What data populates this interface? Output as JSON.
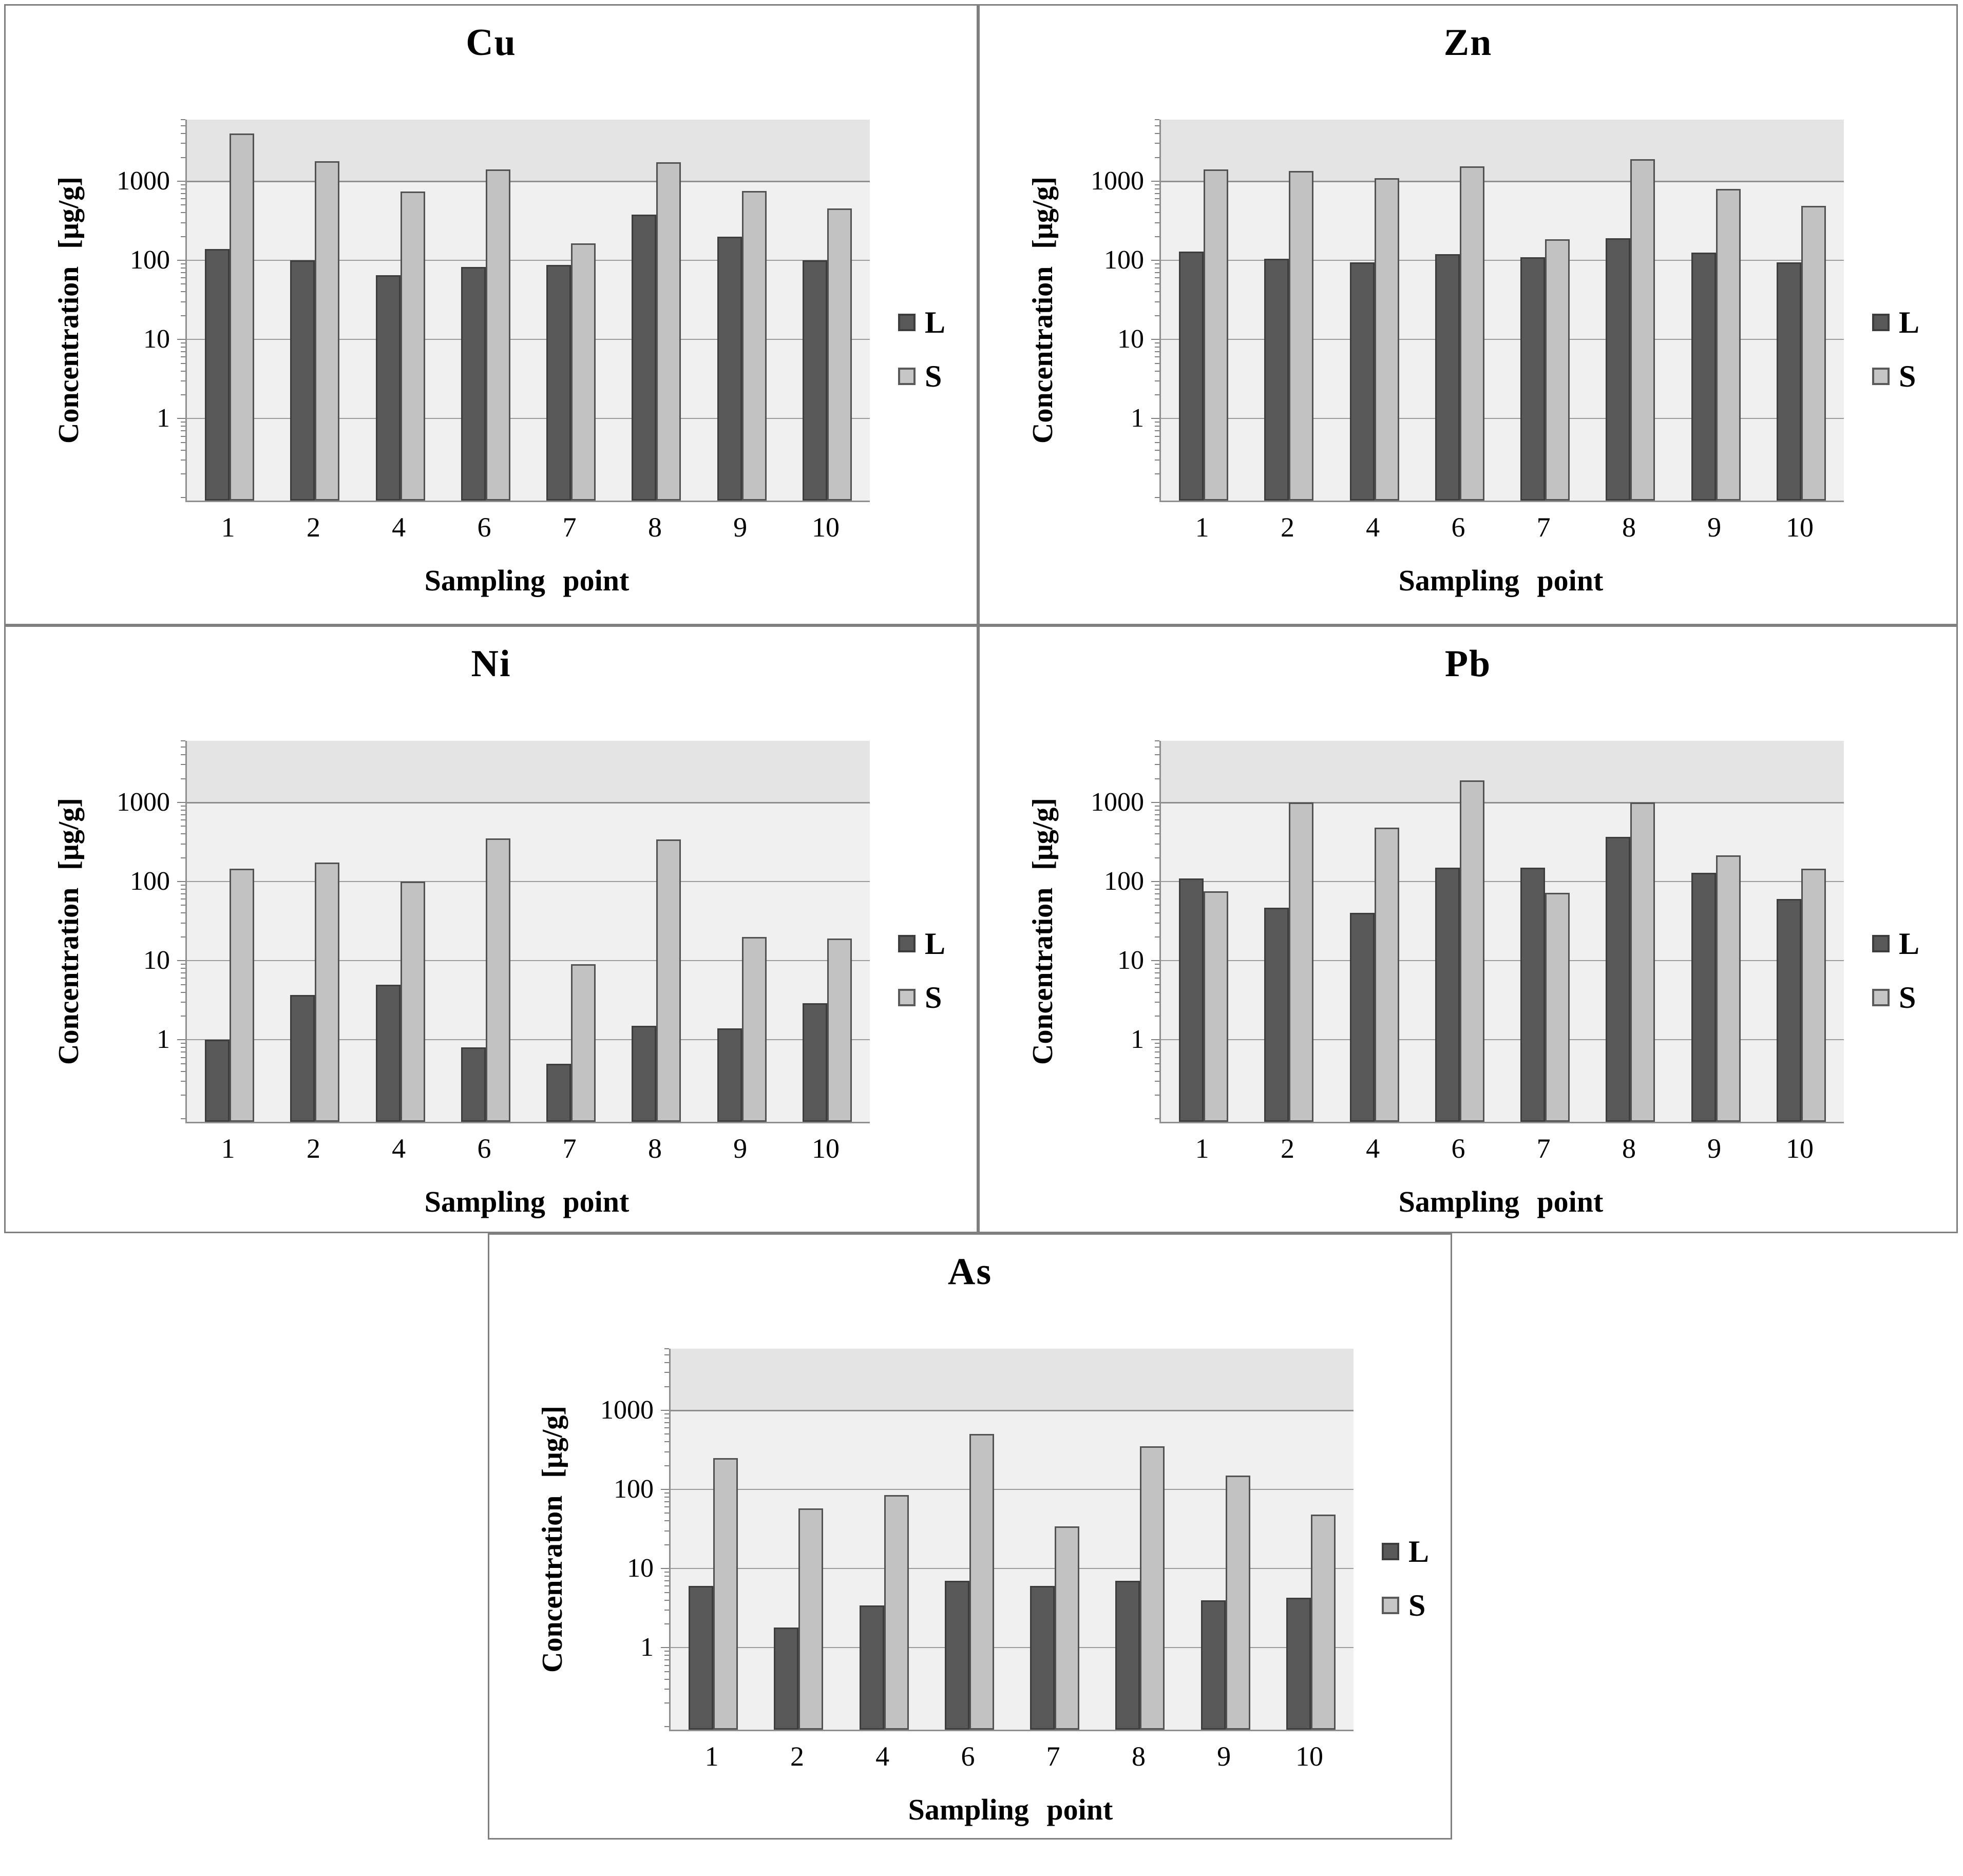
{
  "axis": {
    "y_label": "Concentration [μg/g]",
    "x_label": "Sampling point",
    "y_ticks": [
      "1",
      "10",
      "100",
      "1000"
    ]
  },
  "legend": {
    "L": "L",
    "S": "S"
  },
  "colors": {
    "series_L_fill": "#595959",
    "series_L_border": "#3d3d3d",
    "series_S_fill": "#c2c2c2",
    "series_S_border": "#525252",
    "plot_background": "#f0f0f0",
    "plot_background_upper": "#e4e4e4",
    "gridline": "#9b9b9b",
    "panel_border": "#7f7f7f"
  },
  "chart_data": [
    {
      "type": "bar",
      "title": "Cu",
      "xlabel": "Sampling point",
      "ylabel": "Concentration [μg/g]",
      "yscale": "log",
      "ylim": [
        0.092,
        6000
      ],
      "yticks": [
        1,
        10,
        100,
        1000
      ],
      "grid": true,
      "legend_position": "right",
      "categories": [
        "1",
        "2",
        "4",
        "6",
        "7",
        "8",
        "9",
        "10"
      ],
      "series": [
        {
          "name": "L",
          "values": [
            140,
            100,
            65,
            82,
            87,
            380,
            200,
            100
          ]
        },
        {
          "name": "S",
          "values": [
            4000,
            1800,
            740,
            1400,
            165,
            1750,
            750,
            450
          ]
        }
      ]
    },
    {
      "type": "bar",
      "title": "Zn",
      "xlabel": "Sampling point",
      "ylabel": "Concentration [μg/g]",
      "yscale": "log",
      "ylim": [
        0.092,
        6000
      ],
      "yticks": [
        1,
        10,
        100,
        1000
      ],
      "grid": true,
      "legend_position": "right",
      "categories": [
        "1",
        "2",
        "4",
        "6",
        "7",
        "8",
        "9",
        "10"
      ],
      "series": [
        {
          "name": "L",
          "values": [
            130,
            105,
            95,
            120,
            110,
            190,
            125,
            95
          ]
        },
        {
          "name": "S",
          "values": [
            1400,
            1350,
            1100,
            1550,
            185,
            1900,
            800,
            490
          ]
        }
      ]
    },
    {
      "type": "bar",
      "title": "Ni",
      "xlabel": "Sampling point",
      "ylabel": "Concentration [μg/g]",
      "yscale": "log",
      "ylim": [
        0.092,
        6000
      ],
      "yticks": [
        1,
        10,
        100,
        1000
      ],
      "grid": true,
      "legend_position": "right",
      "categories": [
        "1",
        "2",
        "4",
        "6",
        "7",
        "8",
        "9",
        "10"
      ],
      "series": [
        {
          "name": "L",
          "values": [
            1.0,
            3.7,
            5.0,
            0.8,
            0.5,
            1.5,
            1.4,
            2.9
          ]
        },
        {
          "name": "S",
          "values": [
            145,
            175,
            100,
            350,
            9,
            340,
            20,
            19
          ]
        }
      ]
    },
    {
      "type": "bar",
      "title": "Pb",
      "xlabel": "Sampling point",
      "ylabel": "Concentration [μg/g]",
      "yscale": "log",
      "ylim": [
        0.092,
        6000
      ],
      "yticks": [
        1,
        10,
        100,
        1000
      ],
      "grid": true,
      "legend_position": "right",
      "categories": [
        "1",
        "2",
        "4",
        "6",
        "7",
        "8",
        "9",
        "10"
      ],
      "series": [
        {
          "name": "L",
          "values": [
            110,
            47,
            40,
            150,
            150,
            370,
            130,
            60
          ]
        },
        {
          "name": "S",
          "values": [
            75,
            1000,
            480,
            1900,
            72,
            1000,
            215,
            145
          ]
        }
      ]
    },
    {
      "type": "bar",
      "title": "As",
      "xlabel": "Sampling point",
      "ylabel": "Concentration [μg/g]",
      "yscale": "log",
      "ylim": [
        0.092,
        6000
      ],
      "yticks": [
        1,
        10,
        100,
        1000
      ],
      "grid": true,
      "legend_position": "right",
      "categories": [
        "1",
        "2",
        "4",
        "6",
        "7",
        "8",
        "9",
        "10"
      ],
      "series": [
        {
          "name": "L",
          "values": [
            6,
            1.8,
            3.4,
            7,
            6,
            7,
            4,
            4.3
          ]
        },
        {
          "name": "S",
          "values": [
            250,
            58,
            85,
            500,
            34,
            350,
            150,
            48
          ]
        }
      ]
    }
  ]
}
